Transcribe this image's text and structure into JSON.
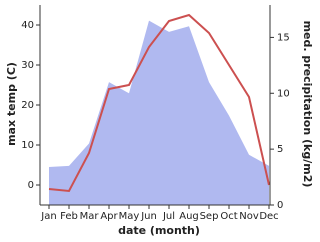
{
  "chart_data": {
    "type": "line-area",
    "x_label": "date (month)",
    "y_label": "max temp (C)",
    "y2_label": "med. precipitation (kg/m2)",
    "categories": [
      "Jan",
      "Feb",
      "Mar",
      "Apr",
      "May",
      "Jun",
      "Jul",
      "Aug",
      "Sep",
      "Oct",
      "Nov",
      "Dec"
    ],
    "ylim": [
      -5,
      45
    ],
    "yticks": [
      0,
      10,
      20,
      30,
      40
    ],
    "y2lim": [
      0,
      17.9
    ],
    "y2ticks": [
      0,
      5,
      10,
      15
    ],
    "series": [
      {
        "name": "med. precipitation",
        "axis": "y2",
        "kind": "area",
        "color": "#b0b9f0",
        "values": [
          3.4,
          3.5,
          5.5,
          11,
          10,
          16.5,
          15.5,
          16,
          11,
          8,
          4.5,
          3.5
        ]
      },
      {
        "name": "max temp",
        "kind": "line",
        "color": "#cc5050",
        "values": [
          -1,
          -1.5,
          8,
          24,
          25,
          34.5,
          41,
          42.5,
          38,
          30,
          22,
          0
        ]
      }
    ]
  }
}
